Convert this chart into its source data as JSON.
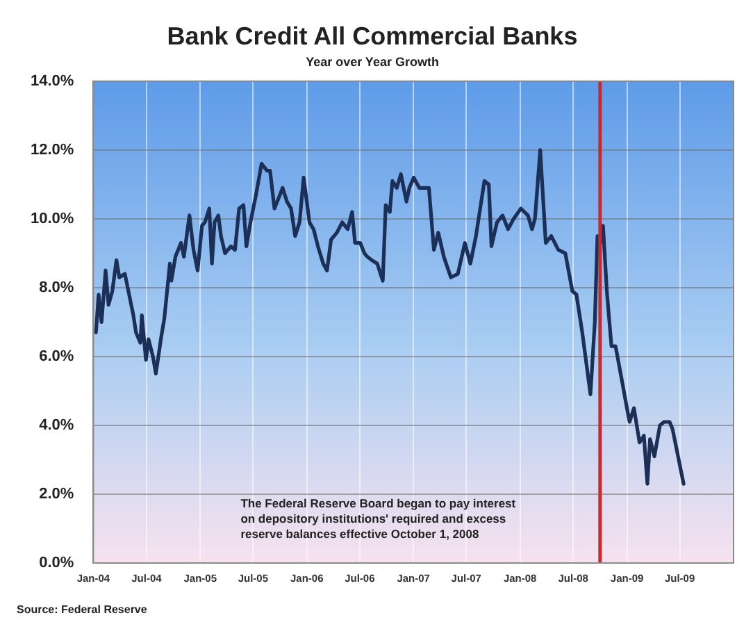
{
  "chart_data": {
    "type": "line",
    "title": "Bank Credit All Commercial Banks",
    "subtitle": "Year over Year Growth",
    "x": [
      "2004-01-10",
      "2004-01-19",
      "2004-01-29",
      "2004-02-12",
      "2004-02-22",
      "2004-03-06",
      "2004-03-20",
      "2004-03-30",
      "2004-04-18",
      "2004-05-17",
      "2004-05-26",
      "2004-06-10",
      "2004-06-15",
      "2004-06-29",
      "2004-07-08",
      "2004-07-23",
      "2004-08-02",
      "2004-08-21",
      "2004-08-31",
      "2004-09-19",
      "2004-09-24",
      "2004-10-08",
      "2004-10-27",
      "2004-11-06",
      "2004-11-25",
      "2004-12-09",
      "2004-12-23",
      "2005-01-07",
      "2005-01-17",
      "2005-02-01",
      "2005-02-10",
      "2005-02-19",
      "2005-03-04",
      "2005-03-13",
      "2005-03-27",
      "2005-04-16",
      "2005-04-30",
      "2005-05-14",
      "2005-05-29",
      "2005-06-08",
      "2005-06-22",
      "2005-07-11",
      "2005-07-30",
      "2005-08-18",
      "2005-08-28",
      "2005-09-12",
      "2005-10-01",
      "2005-10-10",
      "2005-10-25",
      "2005-11-08",
      "2005-11-22",
      "2005-12-07",
      "2005-12-21",
      "2006-01-10",
      "2006-01-24",
      "2006-02-08",
      "2006-02-26",
      "2006-03-11",
      "2006-03-25",
      "2006-04-14",
      "2006-05-02",
      "2006-05-21",
      "2006-06-05",
      "2006-06-15",
      "2006-07-03",
      "2006-07-17",
      "2006-07-27",
      "2006-08-11",
      "2006-08-30",
      "2006-09-18",
      "2006-09-28",
      "2006-10-12",
      "2006-10-21",
      "2006-11-05",
      "2006-11-19",
      "2006-12-08",
      "2006-12-18",
      "2007-01-02",
      "2007-01-21",
      "2007-02-23",
      "2007-03-12",
      "2007-03-27",
      "2007-04-15",
      "2007-05-09",
      "2007-06-02",
      "2007-06-26",
      "2007-07-15",
      "2007-08-03",
      "2007-09-01",
      "2007-09-16",
      "2007-09-25",
      "2007-10-14",
      "2007-11-02",
      "2007-11-21",
      "2007-12-10",
      "2008-01-04",
      "2008-01-28",
      "2008-02-11",
      "2008-02-21",
      "2008-03-10",
      "2008-03-29",
      "2008-04-17",
      "2008-05-11",
      "2008-06-04",
      "2008-06-28",
      "2008-07-12",
      "2008-08-01",
      "2008-08-29",
      "2008-09-13",
      "2008-09-22",
      "2008-10-02",
      "2008-10-11",
      "2008-10-25",
      "2008-11-09",
      "2008-11-23",
      "2008-12-17",
      "2009-01-01",
      "2009-01-10",
      "2009-01-25",
      "2009-02-13",
      "2009-02-28",
      "2009-03-12",
      "2009-03-21",
      "2009-04-05",
      "2009-04-24",
      "2009-05-08",
      "2009-05-27",
      "2009-06-06",
      "2009-07-14"
    ],
    "series": [
      {
        "color": "#1b2f57",
        "values": [
          6.7,
          7.8,
          7.0,
          8.5,
          7.5,
          7.9,
          8.8,
          8.3,
          8.4,
          7.2,
          6.7,
          6.4,
          7.2,
          5.9,
          6.5,
          6.0,
          5.5,
          6.6,
          7.1,
          8.7,
          8.2,
          8.9,
          9.3,
          8.9,
          10.1,
          9.1,
          8.5,
          9.8,
          9.9,
          10.3,
          8.7,
          9.9,
          10.1,
          9.5,
          9.0,
          9.2,
          9.1,
          10.3,
          10.4,
          9.2,
          9.9,
          10.7,
          11.6,
          11.4,
          11.4,
          10.3,
          10.7,
          10.9,
          10.5,
          10.3,
          9.5,
          9.9,
          11.2,
          9.9,
          9.7,
          9.2,
          8.7,
          8.5,
          9.4,
          9.6,
          9.9,
          9.7,
          10.2,
          9.3,
          9.3,
          9.0,
          8.9,
          8.8,
          8.7,
          8.2,
          10.4,
          10.2,
          11.1,
          10.9,
          11.3,
          10.5,
          10.9,
          11.2,
          10.9,
          10.9,
          9.1,
          9.6,
          8.9,
          8.3,
          8.4,
          9.3,
          8.7,
          9.5,
          11.1,
          11.0,
          9.2,
          9.9,
          10.1,
          9.7,
          10.0,
          10.3,
          10.1,
          9.7,
          10.0,
          12.0,
          9.3,
          9.5,
          9.1,
          9.0,
          7.9,
          7.8,
          6.7,
          4.9,
          7.0,
          9.5,
          9.3,
          9.8,
          7.8,
          6.3,
          6.3,
          5.2,
          4.5,
          4.1,
          4.5,
          3.5,
          3.7,
          2.3,
          3.6,
          3.1,
          4.0,
          4.1,
          4.1,
          3.9,
          2.3
        ]
      }
    ],
    "xlim": [
      "2004-01-01",
      "2010-01-01"
    ],
    "xticks": [
      {
        "value": "2004-01-01",
        "label": "Jan-04"
      },
      {
        "value": "2004-07-01",
        "label": "Jul-04"
      },
      {
        "value": "2005-01-01",
        "label": "Jan-05"
      },
      {
        "value": "2005-07-01",
        "label": "Jul-05"
      },
      {
        "value": "2006-01-01",
        "label": "Jan-06"
      },
      {
        "value": "2006-07-01",
        "label": "Jul-06"
      },
      {
        "value": "2007-01-01",
        "label": "Jan-07"
      },
      {
        "value": "2007-07-01",
        "label": "Jul-07"
      },
      {
        "value": "2008-01-01",
        "label": "Jan-08"
      },
      {
        "value": "2008-07-01",
        "label": "Jul-08"
      },
      {
        "value": "2009-01-01",
        "label": "Jan-09"
      },
      {
        "value": "2009-07-01",
        "label": "Jul-09"
      }
    ],
    "ylim": [
      0,
      14
    ],
    "yticks": [
      {
        "value": 0,
        "label": "0.0%"
      },
      {
        "value": 2,
        "label": "2.0%"
      },
      {
        "value": 4,
        "label": "4.0%"
      },
      {
        "value": 6,
        "label": "6.0%"
      },
      {
        "value": 8,
        "label": "8.0%"
      },
      {
        "value": 10,
        "label": "10.0%"
      },
      {
        "value": 12,
        "label": "12.0%"
      },
      {
        "value": 14,
        "label": "14.0%"
      }
    ],
    "ref_lines": [
      {
        "axis": "x",
        "value": "2008-10-01",
        "color": "#c62a2f"
      }
    ],
    "annotations": [
      "The Federal Reserve Board began to pay interest on depository institutions' required and excess reserve balances effective October 1, 2008",
      "Source: Federal Reserve"
    ],
    "grid": true,
    "legend": false,
    "marker": "none",
    "line_style": "solid"
  }
}
